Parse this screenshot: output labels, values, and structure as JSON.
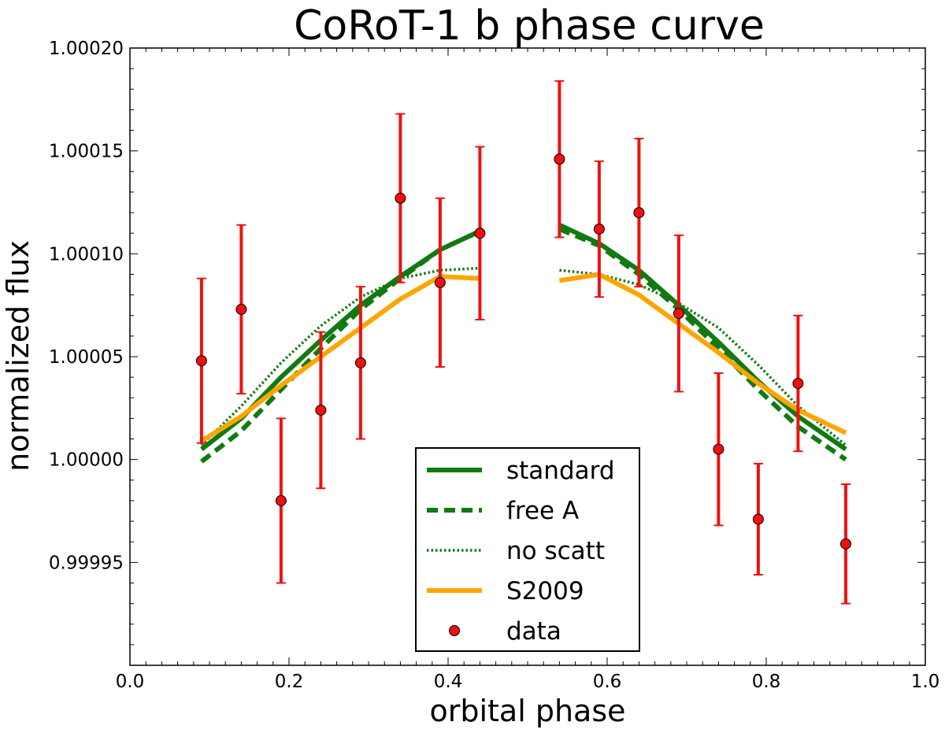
{
  "chart_data": {
    "type": "line",
    "title": "CoRoT-1 b phase curve",
    "xlabel": "orbital phase",
    "ylabel": "normalized flux",
    "xlim": [
      0.0,
      1.0
    ],
    "ylim": [
      0.9999,
      1.0002
    ],
    "xticks": [
      0.0,
      0.2,
      0.4,
      0.6,
      0.8,
      1.0
    ],
    "xtick_labels": [
      "0.0",
      "0.2",
      "0.4",
      "0.6",
      "0.8",
      "1.0"
    ],
    "yticks": [
      0.99995,
      1.0,
      1.00005,
      1.0001,
      1.00015,
      1.0002
    ],
    "ytick_labels": [
      "0.99995",
      "1.00000",
      "1.00005",
      "1.00010",
      "1.00015",
      "1.00020"
    ],
    "grid": false,
    "legend": {
      "position": "lower-center"
    },
    "series": [
      {
        "name": "standard",
        "style": "solid",
        "color": "#117a11",
        "segments": [
          {
            "x": [
              0.09,
              0.14,
              0.19,
              0.24,
              0.29,
              0.34,
              0.39,
              0.44
            ],
            "y": [
              1.000005,
              1.00002,
              1.00004,
              1.000058,
              1.000075,
              1.000089,
              1.000102,
              1.000111
            ]
          },
          {
            "x": [
              0.54,
              0.59,
              0.64,
              0.69,
              0.74,
              0.79,
              0.84,
              0.9
            ],
            "y": [
              1.000114,
              1.000105,
              1.000092,
              1.000075,
              1.000057,
              1.000038,
              1.000021,
              1.000005
            ]
          }
        ]
      },
      {
        "name": "free A",
        "style": "dashed",
        "color": "#117a11",
        "segments": [
          {
            "x": [
              0.09,
              0.14,
              0.19,
              0.24,
              0.29,
              0.34,
              0.39,
              0.44
            ],
            "y": [
              0.999999,
              1.000014,
              1.000034,
              1.000054,
              1.000073,
              1.000088,
              1.000102,
              1.000111
            ]
          },
          {
            "x": [
              0.54,
              0.59,
              0.64,
              0.69,
              0.74,
              0.79,
              0.84,
              0.9
            ],
            "y": [
              1.000112,
              1.000104,
              1.00009,
              1.000073,
              1.000054,
              1.000034,
              1.000016,
              1.0
            ]
          }
        ]
      },
      {
        "name": "no scatt",
        "style": "dotted",
        "color": "#117a11",
        "segments": [
          {
            "x": [
              0.09,
              0.14,
              0.19,
              0.24,
              0.29,
              0.34,
              0.39,
              0.44
            ],
            "y": [
              1.000007,
              1.000026,
              1.000047,
              1.000065,
              1.000079,
              1.000088,
              1.000092,
              1.000093
            ]
          },
          {
            "x": [
              0.54,
              0.59,
              0.64,
              0.69,
              0.74,
              0.79,
              0.84,
              0.9
            ],
            "y": [
              1.000092,
              1.00009,
              1.000085,
              1.000076,
              1.000064,
              1.000046,
              1.000026,
              1.000007
            ]
          }
        ]
      },
      {
        "name": "S2009",
        "style": "solid",
        "color": "#ffa500",
        "segments": [
          {
            "x": [
              0.09,
              0.14,
              0.19,
              0.24,
              0.29,
              0.34,
              0.39,
              0.44
            ],
            "y": [
              1.000009,
              1.000021,
              1.000036,
              1.00005,
              1.000064,
              1.000078,
              1.000089,
              1.000088
            ]
          },
          {
            "x": [
              0.54,
              0.59,
              0.64,
              0.69,
              0.74,
              0.79,
              0.84,
              0.9
            ],
            "y": [
              1.000087,
              1.00009,
              1.00008,
              1.000066,
              1.000052,
              1.000037,
              1.000024,
              1.000013
            ]
          }
        ]
      },
      {
        "name": "data",
        "style": "markers",
        "color": "#ee1111",
        "x": [
          0.09,
          0.14,
          0.19,
          0.24,
          0.29,
          0.34,
          0.39,
          0.44,
          0.54,
          0.59,
          0.64,
          0.69,
          0.74,
          0.79,
          0.84,
          0.9
        ],
        "y": [
          1.000048,
          1.000073,
          0.99998,
          1.000024,
          1.000047,
          1.000127,
          1.000086,
          1.00011,
          1.000146,
          1.000112,
          1.00012,
          1.000071,
          1.000005,
          0.999971,
          1.000037,
          0.999959
        ],
        "yerr": [
          4e-05,
          4.1e-05,
          4e-05,
          3.8e-05,
          3.7e-05,
          4.1e-05,
          4.1e-05,
          4.2e-05,
          3.8e-05,
          3.3e-05,
          3.6e-05,
          3.8e-05,
          3.7e-05,
          2.7e-05,
          3.3e-05,
          2.9e-05
        ]
      }
    ]
  }
}
